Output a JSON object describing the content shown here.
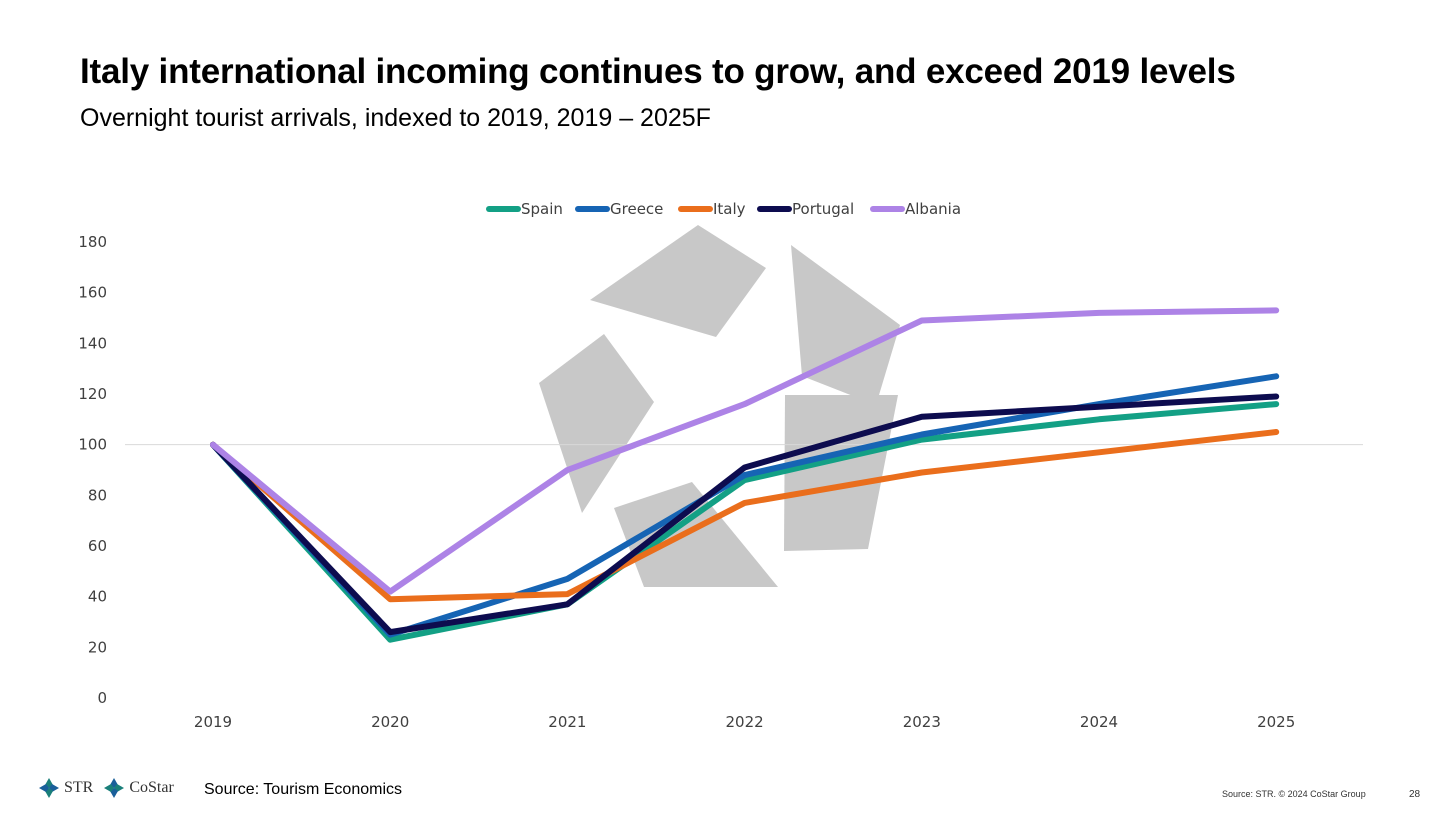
{
  "slide": {
    "title": "Italy international incoming continues to grow, and exceed 2019 levels",
    "subtitle": "Overnight tourist arrivals, indexed to 2019, 2019 – 2025F",
    "source_left": "Source: Tourism Economics",
    "source_right": "Source: STR. © 2024 CoStar Group",
    "page_number": "28",
    "logos": {
      "str": "STR",
      "costar": "CoStar"
    }
  },
  "chart_data": {
    "type": "line",
    "title": "",
    "xlabel": "",
    "ylabel": "",
    "categories": [
      "2019",
      "2020",
      "2021",
      "2022",
      "2023",
      "2024",
      "2025"
    ],
    "ylim": [
      0,
      180
    ],
    "yticks": [
      0,
      20,
      40,
      60,
      80,
      100,
      120,
      140,
      160,
      180
    ],
    "reference_line": 100,
    "grid": false,
    "legend": "top-center",
    "series": [
      {
        "name": "Spain",
        "color": "#13A085",
        "values": [
          100,
          23,
          37,
          86,
          102,
          110,
          116
        ]
      },
      {
        "name": "Greece",
        "color": "#1664B4",
        "values": [
          100,
          25,
          47,
          88,
          104,
          116,
          127
        ]
      },
      {
        "name": "Italy",
        "color": "#EA6E1C",
        "values": [
          100,
          39,
          41,
          77,
          89,
          97,
          105
        ]
      },
      {
        "name": "Portugal",
        "color": "#0D0C4F",
        "values": [
          100,
          26,
          37,
          91,
          111,
          115,
          119
        ]
      },
      {
        "name": "Albania",
        "color": "#AD83E6",
        "values": [
          100,
          42,
          90,
          116,
          149,
          152,
          153
        ]
      }
    ]
  }
}
